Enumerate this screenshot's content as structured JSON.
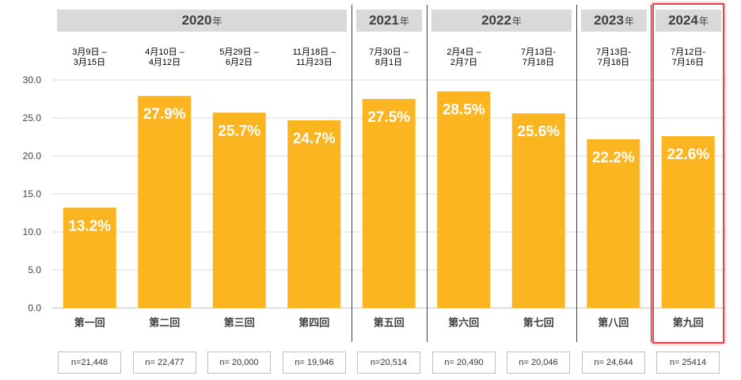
{
  "chart_data": {
    "type": "bar",
    "categories": [
      "第一回",
      "第二回",
      "第三回",
      "第四回",
      "第五回",
      "第六回",
      "第七回",
      "第八回",
      "第九回"
    ],
    "values": [
      13.2,
      27.9,
      25.7,
      24.7,
      27.5,
      28.5,
      25.6,
      22.2,
      22.6
    ],
    "value_labels": [
      "13.2%",
      "27.9%",
      "25.7%",
      "24.7%",
      "27.5%",
      "28.5%",
      "25.6%",
      "22.2%",
      "22.6%"
    ],
    "date_ranges": [
      "3月9日 –\n3月15日",
      "4月10日 –\n4月12日",
      "5月29日 –\n6月2日",
      "11月18日 –\n11月23日",
      "7月30日 –\n8月1日",
      "2月4日 –\n2月7日",
      "7月13日-\n7月18日",
      "7月13日-\n7月18日",
      "7月12日-\n7月16日"
    ],
    "sample_sizes": [
      "n=21,448",
      "n= 22,477",
      "n= 20,000",
      "n= 19,946",
      "n=20,514",
      "n= 20,490",
      "n= 20,046",
      "n= 24,644",
      "n= 25414"
    ],
    "years": [
      {
        "year": "2020",
        "unit": "年"
      },
      {
        "year": "2021",
        "unit": "年"
      },
      {
        "year": "2022",
        "unit": "年"
      },
      {
        "year": "2023",
        "unit": "年"
      },
      {
        "year": "2024",
        "unit": "年"
      }
    ],
    "yticks": [
      "0.0",
      "5.0",
      "10.0",
      "15.0",
      "20.0",
      "25.0",
      "30.0"
    ],
    "ylim": [
      0,
      30
    ],
    "grid": true,
    "highlighted_category": "第九回",
    "bar_color": "#fbb520",
    "grid_color": "#d9d9d9",
    "highlight_color": "#e8444c",
    "year_box_color": "#d9d9d9"
  }
}
